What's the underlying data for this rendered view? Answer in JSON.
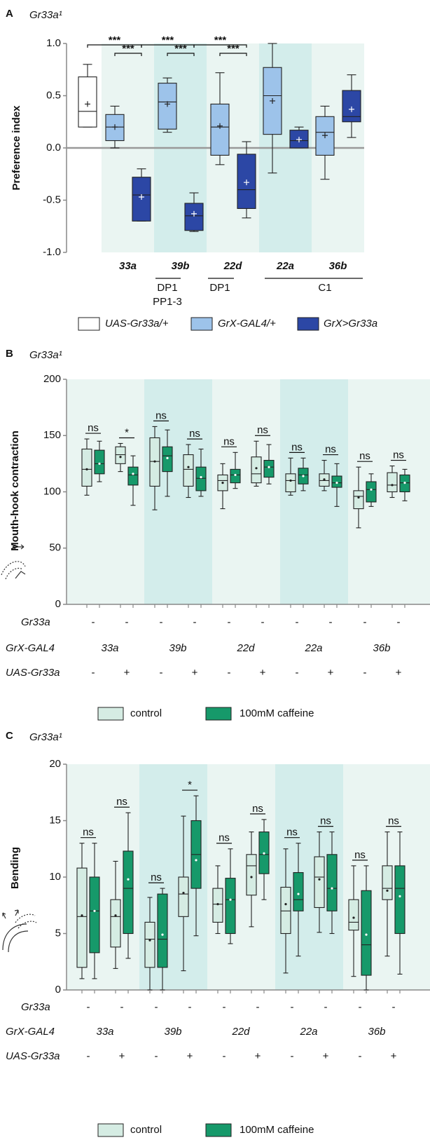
{
  "chart_data": [
    {
      "type": "box",
      "panel": "A",
      "title": "Gr33a¹",
      "y_label": "Preference index",
      "categories": [
        null,
        "33a",
        "39b",
        "22d",
        "22a",
        "36b"
      ],
      "neuron_classes": [
        "DP1",
        "PP1-3",
        "DP1",
        "C1"
      ],
      "series": [
        {
          "name": "UAS-Gr33a/+",
          "color": "#ffffff",
          "values": [
            {
              "min": 0.2,
              "q1": 0.2,
              "median": 0.35,
              "q3": 0.68,
              "max": 0.8,
              "mean": 0.42
            },
            null,
            null,
            null,
            null,
            null
          ]
        },
        {
          "name": "GrX-GAL4/+",
          "color": "#9dc3ea",
          "values": [
            null,
            {
              "min": 0,
              "q1": 0.07,
              "median": 0.2,
              "q3": 0.32,
              "max": 0.4,
              "mean": 0.2
            },
            {
              "min": 0.15,
              "q1": 0.18,
              "median": 0.44,
              "q3": 0.62,
              "max": 0.67,
              "mean": 0.42
            },
            {
              "min": -0.16,
              "q1": -0.07,
              "median": 0.2,
              "q3": 0.42,
              "max": 0.72,
              "mean": 0.21
            },
            {
              "min": -0.24,
              "q1": 0.13,
              "median": 0.5,
              "q3": 0.77,
              "max": 1,
              "mean": 0.45
            },
            {
              "min": -0.3,
              "q1": -0.07,
              "median": 0.15,
              "q3": 0.3,
              "max": 0.4,
              "mean": 0.12
            }
          ]
        },
        {
          "name": "GrX>Gr33a",
          "color": "#2c47a5",
          "values": [
            null,
            {
              "min": -0.7,
              "q1": -0.7,
              "median": -0.45,
              "q3": -0.28,
              "max": -0.2,
              "mean": -0.47
            },
            {
              "min": -0.8,
              "q1": -0.79,
              "median": -0.65,
              "q3": -0.53,
              "max": -0.43,
              "mean": -0.63
            },
            {
              "min": -0.67,
              "q1": -0.58,
              "median": -0.4,
              "q3": -0.06,
              "max": 0.06,
              "mean": -0.33
            },
            {
              "min": 0,
              "q1": 0,
              "median": 0.07,
              "q3": 0.17,
              "max": 0.2,
              "mean": 0.08
            },
            {
              "min": 0.1,
              "q1": 0.25,
              "median": 0.3,
              "q3": 0.55,
              "max": 0.7,
              "mean": 0.37
            }
          ]
        }
      ],
      "significance": [
        "***",
        "***",
        "***",
        "***",
        "***",
        "***"
      ],
      "ylim": [
        -1,
        1
      ],
      "yticks": [
        {
          "value": 1,
          "label": "1.0"
        },
        {
          "value": 0.5,
          "label": "0.5"
        },
        {
          "value": 0,
          "label": "0.0"
        },
        {
          "value": -0.5,
          "label": "-0.5"
        },
        {
          "value": -1,
          "label": "-1.0"
        }
      ],
      "zero_line": true,
      "mean_marker": "plus"
    },
    {
      "type": "box",
      "panel": "B",
      "title": "Gr33a¹",
      "y_label": "Mouth-hook contraction",
      "genotypes": [
        {
          "label": "Gr33a",
          "cells": [
            "-",
            "-",
            "-",
            "-",
            "-",
            "-",
            "-",
            "-",
            "-",
            "-"
          ]
        },
        {
          "label": "GrX-GAL4",
          "cells": [
            "33a",
            "39b",
            "22d",
            "22a",
            "36b"
          ]
        },
        {
          "label": "UAS-Gr33a",
          "cells": [
            "-",
            "+",
            "-",
            "+",
            "-",
            "+",
            "-",
            "+",
            "-",
            "+"
          ]
        }
      ],
      "series": [
        {
          "name": "control",
          "color": "#d5ece3",
          "values": [
            {
              "min": 97,
              "q1": 105,
              "median": 120,
              "q3": 138,
              "max": 147,
              "mean": 120
            },
            {
              "min": 118,
              "q1": 125,
              "median": 133,
              "q3": 140,
              "max": 143,
              "mean": 131
            },
            {
              "min": 84,
              "q1": 105,
              "median": 127,
              "q3": 148,
              "max": 158,
              "mean": 127
            },
            {
              "min": 95,
              "q1": 105,
              "median": 120,
              "q3": 133,
              "max": 142,
              "mean": 122
            },
            {
              "min": 85,
              "q1": 101,
              "median": 110,
              "q3": 115,
              "max": 125,
              "mean": 108
            },
            {
              "min": 105,
              "q1": 108,
              "median": 116,
              "q3": 131,
              "max": 145,
              "mean": 121
            },
            {
              "min": 97,
              "q1": 100,
              "median": 110,
              "q3": 116,
              "max": 130,
              "mean": 110
            },
            {
              "min": 101,
              "q1": 105,
              "median": 110,
              "q3": 116,
              "max": 128,
              "mean": 111
            },
            {
              "min": 68,
              "q1": 85,
              "median": 96,
              "q3": 101,
              "max": 122,
              "mean": 95
            },
            {
              "min": 95,
              "q1": 100,
              "median": 106,
              "q3": 117,
              "max": 123,
              "mean": 106
            }
          ]
        },
        {
          "name": "100mM caffeine",
          "color": "#16996a",
          "values": [
            {
              "min": 109,
              "q1": 116,
              "median": 125,
              "q3": 137,
              "max": 145,
              "mean": 125
            },
            {
              "min": 88,
              "q1": 106,
              "median": 115,
              "q3": 122,
              "max": 132,
              "mean": 116
            },
            {
              "min": 96,
              "q1": 118,
              "median": 132,
              "q3": 140,
              "max": 155,
              "mean": 130
            },
            {
              "min": 96,
              "q1": 101,
              "median": 112,
              "q3": 122,
              "max": 138,
              "mean": 113
            },
            {
              "min": 103,
              "q1": 108,
              "median": 115,
              "q3": 120,
              "max": 135,
              "mean": 115
            },
            {
              "min": 107,
              "q1": 113,
              "median": 122,
              "q3": 128,
              "max": 142,
              "mean": 122
            },
            {
              "min": 101,
              "q1": 107,
              "median": 115,
              "q3": 121,
              "max": 130,
              "mean": 114
            },
            {
              "min": 87,
              "q1": 104,
              "median": 108,
              "q3": 114,
              "max": 125,
              "mean": 108
            },
            {
              "min": 87,
              "q1": 91,
              "median": 102,
              "q3": 109,
              "max": 116,
              "mean": 102
            },
            {
              "min": 92,
              "q1": 100,
              "median": 108,
              "q3": 115,
              "max": 120,
              "mean": 108
            }
          ]
        }
      ],
      "significance": [
        "ns",
        "*",
        "ns",
        "ns",
        "ns",
        "ns",
        "ns",
        "ns",
        "ns",
        "ns"
      ],
      "ylim": [
        0,
        200
      ],
      "yticks": [
        0,
        50,
        100,
        150,
        200
      ],
      "mean_marker": "dot"
    },
    {
      "type": "box",
      "panel": "C",
      "title": "Gr33a¹",
      "y_label": "Bending",
      "genotypes": [
        {
          "label": "Gr33a",
          "cells": [
            "-",
            "-",
            "-",
            "-",
            "-",
            "-",
            "-",
            "-",
            "-",
            "-"
          ]
        },
        {
          "label": "GrX-GAL4",
          "cells": [
            "33a",
            "39b",
            "22d",
            "22a",
            "36b"
          ]
        },
        {
          "label": "UAS-Gr33a",
          "cells": [
            "-",
            "+",
            "-",
            "+",
            "-",
            "+",
            "-",
            "+",
            "-",
            "+"
          ]
        }
      ],
      "series": [
        {
          "name": "control",
          "color": "#d5ece3",
          "values": [
            {
              "min": 1,
              "q1": 2,
              "median": 6.5,
              "q3": 10.8,
              "max": 13,
              "mean": 6.6
            },
            {
              "min": 1.9,
              "q1": 3.8,
              "median": 6.5,
              "q3": 8,
              "max": 11.4,
              "mean": 6.6
            },
            {
              "min": 0,
              "q1": 2,
              "median": 4.5,
              "q3": 6,
              "max": 8.2,
              "mean": 4.4
            },
            {
              "min": 1.7,
              "q1": 6.5,
              "median": 8.5,
              "q3": 10,
              "max": 15.4,
              "mean": 8.6
            },
            {
              "min": 5,
              "q1": 6,
              "median": 7.6,
              "q3": 9,
              "max": 11,
              "mean": 7.6
            },
            {
              "min": 5.6,
              "q1": 8.4,
              "median": 11,
              "q3": 12,
              "max": 14,
              "mean": 10
            },
            {
              "min": 1.5,
              "q1": 5,
              "median": 7,
              "q3": 9.1,
              "max": 12.5,
              "mean": 7.6
            },
            {
              "min": 5.1,
              "q1": 7.3,
              "median": 10,
              "q3": 11.8,
              "max": 14,
              "mean": 9.8
            },
            {
              "min": 1.2,
              "q1": 5.3,
              "median": 6,
              "q3": 8,
              "max": 11,
              "mean": 6.4
            },
            {
              "min": 3,
              "q1": 8,
              "median": 9,
              "q3": 11,
              "max": 14,
              "mean": 8.8
            }
          ]
        },
        {
          "name": "100mM caffeine",
          "color": "#16996a",
          "values": [
            {
              "min": 1,
              "q1": 3.3,
              "median": 7,
              "q3": 10,
              "max": 13,
              "mean": 7
            },
            {
              "min": 2.8,
              "q1": 5,
              "median": 9,
              "q3": 12.3,
              "max": 15.7,
              "mean": 9.8
            },
            {
              "min": 0,
              "q1": 2,
              "median": 4.5,
              "q3": 8.5,
              "max": 9,
              "mean": 4.9
            },
            {
              "min": 4.8,
              "q1": 9,
              "median": 12,
              "q3": 15,
              "max": 17.2,
              "mean": 11.5
            },
            {
              "min": 4.1,
              "q1": 5,
              "median": 8,
              "q3": 9.9,
              "max": 12.5,
              "mean": 8
            },
            {
              "min": 8,
              "q1": 10.3,
              "median": 12,
              "q3": 14,
              "max": 15.1,
              "mean": 12.1
            },
            {
              "min": 3,
              "q1": 7,
              "median": 8,
              "q3": 10.4,
              "max": 13,
              "mean": 8.5
            },
            {
              "min": 5,
              "q1": 7,
              "median": 9,
              "q3": 12,
              "max": 14,
              "mean": 9
            },
            {
              "min": 0,
              "q1": 1.3,
              "median": 4,
              "q3": 8.8,
              "max": 11,
              "mean": 4.9
            },
            {
              "min": 1.4,
              "q1": 5,
              "median": 9,
              "q3": 11,
              "max": 14,
              "mean": 8.3
            }
          ]
        }
      ],
      "significance": [
        "ns",
        "ns",
        "ns",
        "*",
        "ns",
        "ns",
        "ns",
        "ns",
        "ns",
        "ns"
      ],
      "ylim": [
        0,
        20
      ],
      "yticks": [
        0,
        5,
        10,
        15,
        20
      ],
      "mean_marker": "dot"
    }
  ]
}
